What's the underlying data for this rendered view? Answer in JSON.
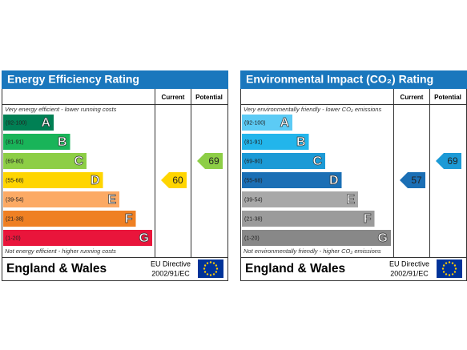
{
  "panels": [
    {
      "title": "Energy Efficiency Rating",
      "column_headers": [
        "Current",
        "Potential"
      ],
      "top_note": "Very energy efficient - lower running costs",
      "bottom_note": "Not energy efficient - higher running costs",
      "bands": [
        {
          "range": "(92-100)",
          "letter": "A",
          "color": "#008054"
        },
        {
          "range": "(81-91)",
          "letter": "B",
          "color": "#19b459"
        },
        {
          "range": "(69-80)",
          "letter": "C",
          "color": "#8dce46"
        },
        {
          "range": "(55-68)",
          "letter": "D",
          "color": "#ffd500"
        },
        {
          "range": "(39-54)",
          "letter": "E",
          "color": "#fcaa65"
        },
        {
          "range": "(21-38)",
          "letter": "F",
          "color": "#ef8023"
        },
        {
          "range": "(1-20)",
          "letter": "G",
          "color": "#e9153b"
        }
      ],
      "current": 60,
      "potential": 69,
      "region": "England & Wales",
      "directive": [
        "EU Directive",
        "2002/91/EC"
      ]
    },
    {
      "title": "Environmental Impact (CO₂) Rating",
      "column_headers": [
        "Current",
        "Potential"
      ],
      "top_note": "Very environmentally friendly - lower CO₂ emissions",
      "bottom_note": "Not environmentally friendly - higher CO₂ emissions",
      "bands": [
        {
          "range": "(92-100)",
          "letter": "A",
          "color": "#5ccbf5"
        },
        {
          "range": "(81-91)",
          "letter": "B",
          "color": "#22b5eb"
        },
        {
          "range": "(69-80)",
          "letter": "C",
          "color": "#1c9ad6"
        },
        {
          "range": "(55-68)",
          "letter": "D",
          "color": "#1b6fb5"
        },
        {
          "range": "(39-54)",
          "letter": "E",
          "color": "#a8a8a8"
        },
        {
          "range": "(21-38)",
          "letter": "F",
          "color": "#9b9b9b"
        },
        {
          "range": "(1-20)",
          "letter": "G",
          "color": "#888888"
        }
      ],
      "current": 57,
      "potential": 69,
      "region": "England & Wales",
      "directive": [
        "EU Directive",
        "2002/91/EC"
      ]
    }
  ]
}
